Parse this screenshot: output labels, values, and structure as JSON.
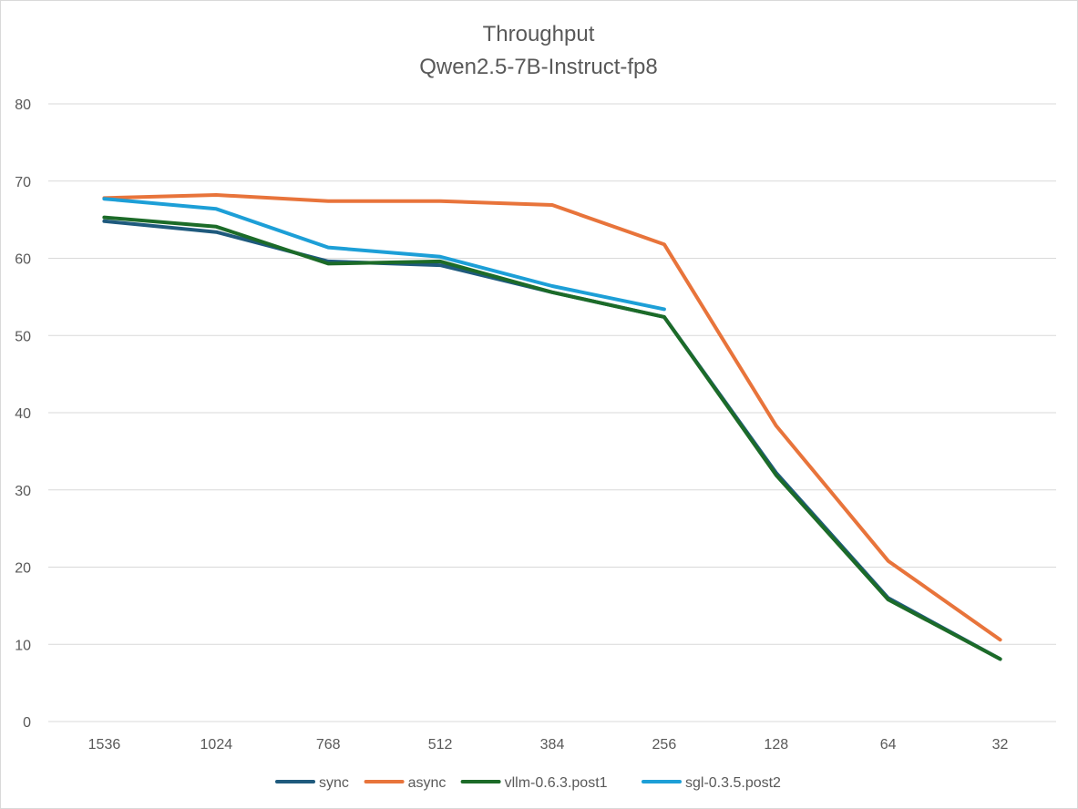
{
  "chart_data": {
    "type": "line",
    "title": "Throughput",
    "subtitle": "Qwen2.5-7B-Instruct-fp8",
    "xlabel": "",
    "ylabel": "",
    "categories": [
      "1536",
      "1024",
      "768",
      "512",
      "384",
      "256",
      "128",
      "64",
      "32"
    ],
    "ylim": [
      0,
      80
    ],
    "yticks": [
      0,
      10,
      20,
      30,
      40,
      50,
      60,
      70,
      80
    ],
    "grid": true,
    "legend_position": "bottom",
    "series": [
      {
        "name": "sync",
        "color": "#1f5a7d",
        "values": [
          64.8,
          63.4,
          59.6,
          59.1,
          55.6,
          52.4,
          32.2,
          16.0,
          8.1
        ]
      },
      {
        "name": "async",
        "color": "#e8743b",
        "values": [
          67.8,
          68.2,
          67.4,
          67.4,
          66.9,
          61.8,
          38.3,
          20.8,
          10.6
        ]
      },
      {
        "name": "vllm-0.6.3.post1",
        "color": "#1c6b28",
        "values": [
          65.3,
          64.1,
          59.3,
          59.6,
          55.6,
          52.4,
          31.9,
          15.8,
          8.1
        ]
      },
      {
        "name": "sgl-0.3.5.post2",
        "color": "#1d9fd7",
        "values": [
          67.7,
          66.4,
          61.4,
          60.2,
          56.4,
          53.4,
          null,
          null,
          null
        ]
      }
    ]
  }
}
